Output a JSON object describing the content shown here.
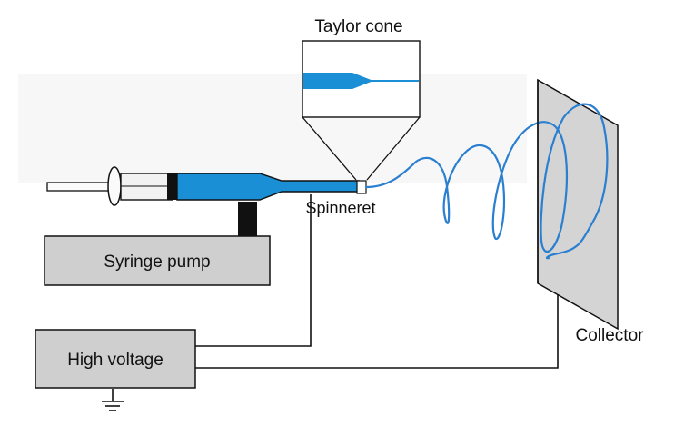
{
  "labels": {
    "taylor_cone": "Taylor cone",
    "spinneret": "Spinneret",
    "syringe_pump": "Syringe pump",
    "high_voltage": "High voltage",
    "collector": "Collector"
  },
  "colors": {
    "fluid_blue": "#1a8fd6",
    "jet_blue": "#2a7fd0",
    "box_gray": "#cfcfcf",
    "collector_gray": "#d4d4d4",
    "black": "#111111"
  }
}
